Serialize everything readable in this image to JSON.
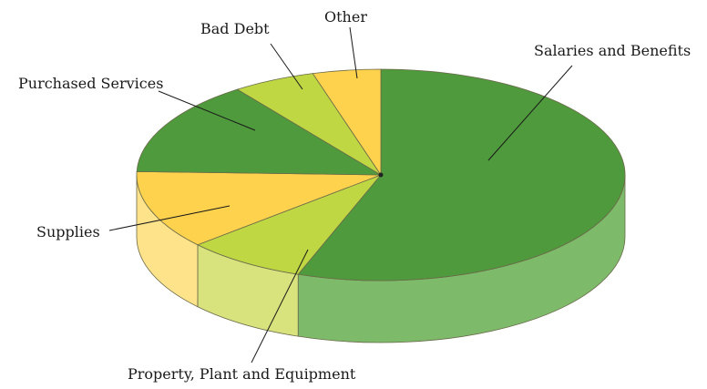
{
  "chart_data": {
    "type": "pie",
    "title": "",
    "style": "3d-exploded-none",
    "slices": [
      {
        "label": "Salaries and Benefits",
        "value": 55.5,
        "color": "#4f9a3c",
        "side_color": "#7dbb6a"
      },
      {
        "label": "Property, Plant and Equipment",
        "value": 8.0,
        "color": "#bfd742",
        "side_color": "#d8e37d"
      },
      {
        "label": "Supplies",
        "value": 12.0,
        "color": "#ffd24d",
        "side_color": "#ffe38b"
      },
      {
        "label": "Purchased Services",
        "value": 14.5,
        "color": "#4f9a3c",
        "side_color": "#7dbb6a"
      },
      {
        "label": "Bad Debt",
        "value": 5.5,
        "color": "#bfd742",
        "side_color": "#d8e37d"
      },
      {
        "label": "Other",
        "value": 4.5,
        "color": "#ffd24d",
        "side_color": "#ffe38b"
      }
    ],
    "legend": "none"
  }
}
